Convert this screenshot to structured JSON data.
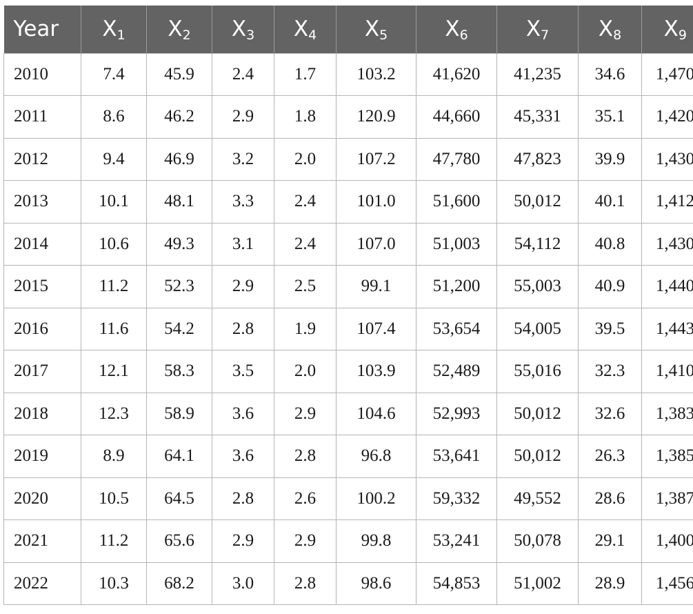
{
  "table": {
    "header": {
      "year": "Year",
      "variables": [
        {
          "base": "X",
          "sub": "1"
        },
        {
          "base": "X",
          "sub": "2"
        },
        {
          "base": "X",
          "sub": "3"
        },
        {
          "base": "X",
          "sub": "4"
        },
        {
          "base": "X",
          "sub": "5"
        },
        {
          "base": "X",
          "sub": "6"
        },
        {
          "base": "X",
          "sub": "7"
        },
        {
          "base": "X",
          "sub": "8"
        },
        {
          "base": "X",
          "sub": "9"
        }
      ]
    },
    "rows": [
      [
        "2010",
        "7.4",
        "45.9",
        "2.4",
        "1.7",
        "103.2",
        "41,620",
        "41,235",
        "34.6",
        "1,470"
      ],
      [
        "2011",
        "8.6",
        "46.2",
        "2.9",
        "1.8",
        "120.9",
        "44,660",
        "45,331",
        "35.1",
        "1,420"
      ],
      [
        "2012",
        "9.4",
        "46.9",
        "3.2",
        "2.0",
        "107.2",
        "47,780",
        "47,823",
        "39.9",
        "1,430"
      ],
      [
        "2013",
        "10.1",
        "48.1",
        "3.3",
        "2.4",
        "101.0",
        "51,600",
        "50,012",
        "40.1",
        "1,412"
      ],
      [
        "2014",
        "10.6",
        "49.3",
        "3.1",
        "2.4",
        "107.0",
        "51,003",
        "54,112",
        "40.8",
        "1,430"
      ],
      [
        "2015",
        "11.2",
        "52.3",
        "2.9",
        "2.5",
        "99.1",
        "51,200",
        "55,003",
        "40.9",
        "1,440"
      ],
      [
        "2016",
        "11.6",
        "54.2",
        "2.8",
        "1.9",
        "107.4",
        "53,654",
        "54,005",
        "39.5",
        "1,443"
      ],
      [
        "2017",
        "12.1",
        "58.3",
        "3.5",
        "2.0",
        "103.9",
        "52,489",
        "55,016",
        "32.3",
        "1,410"
      ],
      [
        "2018",
        "12.3",
        "58.9",
        "3.6",
        "2.9",
        "104.6",
        "52,993",
        "50,012",
        "32.6",
        "1,383"
      ],
      [
        "2019",
        "8.9",
        "64.1",
        "3.6",
        "2.8",
        "96.8",
        "53,641",
        "50,012",
        "26.3",
        "1,385"
      ],
      [
        "2020",
        "10.5",
        "64.5",
        "2.8",
        "2.6",
        "100.2",
        "59,332",
        "49,552",
        "28.6",
        "1,387"
      ],
      [
        "2021",
        "11.2",
        "65.6",
        "2.9",
        "2.9",
        "99.8",
        "53,241",
        "50,078",
        "29.1",
        "1,400"
      ],
      [
        "2022",
        "10.3",
        "68.2",
        "3.0",
        "2.8",
        "98.6",
        "54,853",
        "51,002",
        "28.9",
        "1,456"
      ]
    ]
  },
  "colors": {
    "header_background": "#636363",
    "header_text": "#ffffff",
    "grid_line": "#b4b4b4"
  }
}
